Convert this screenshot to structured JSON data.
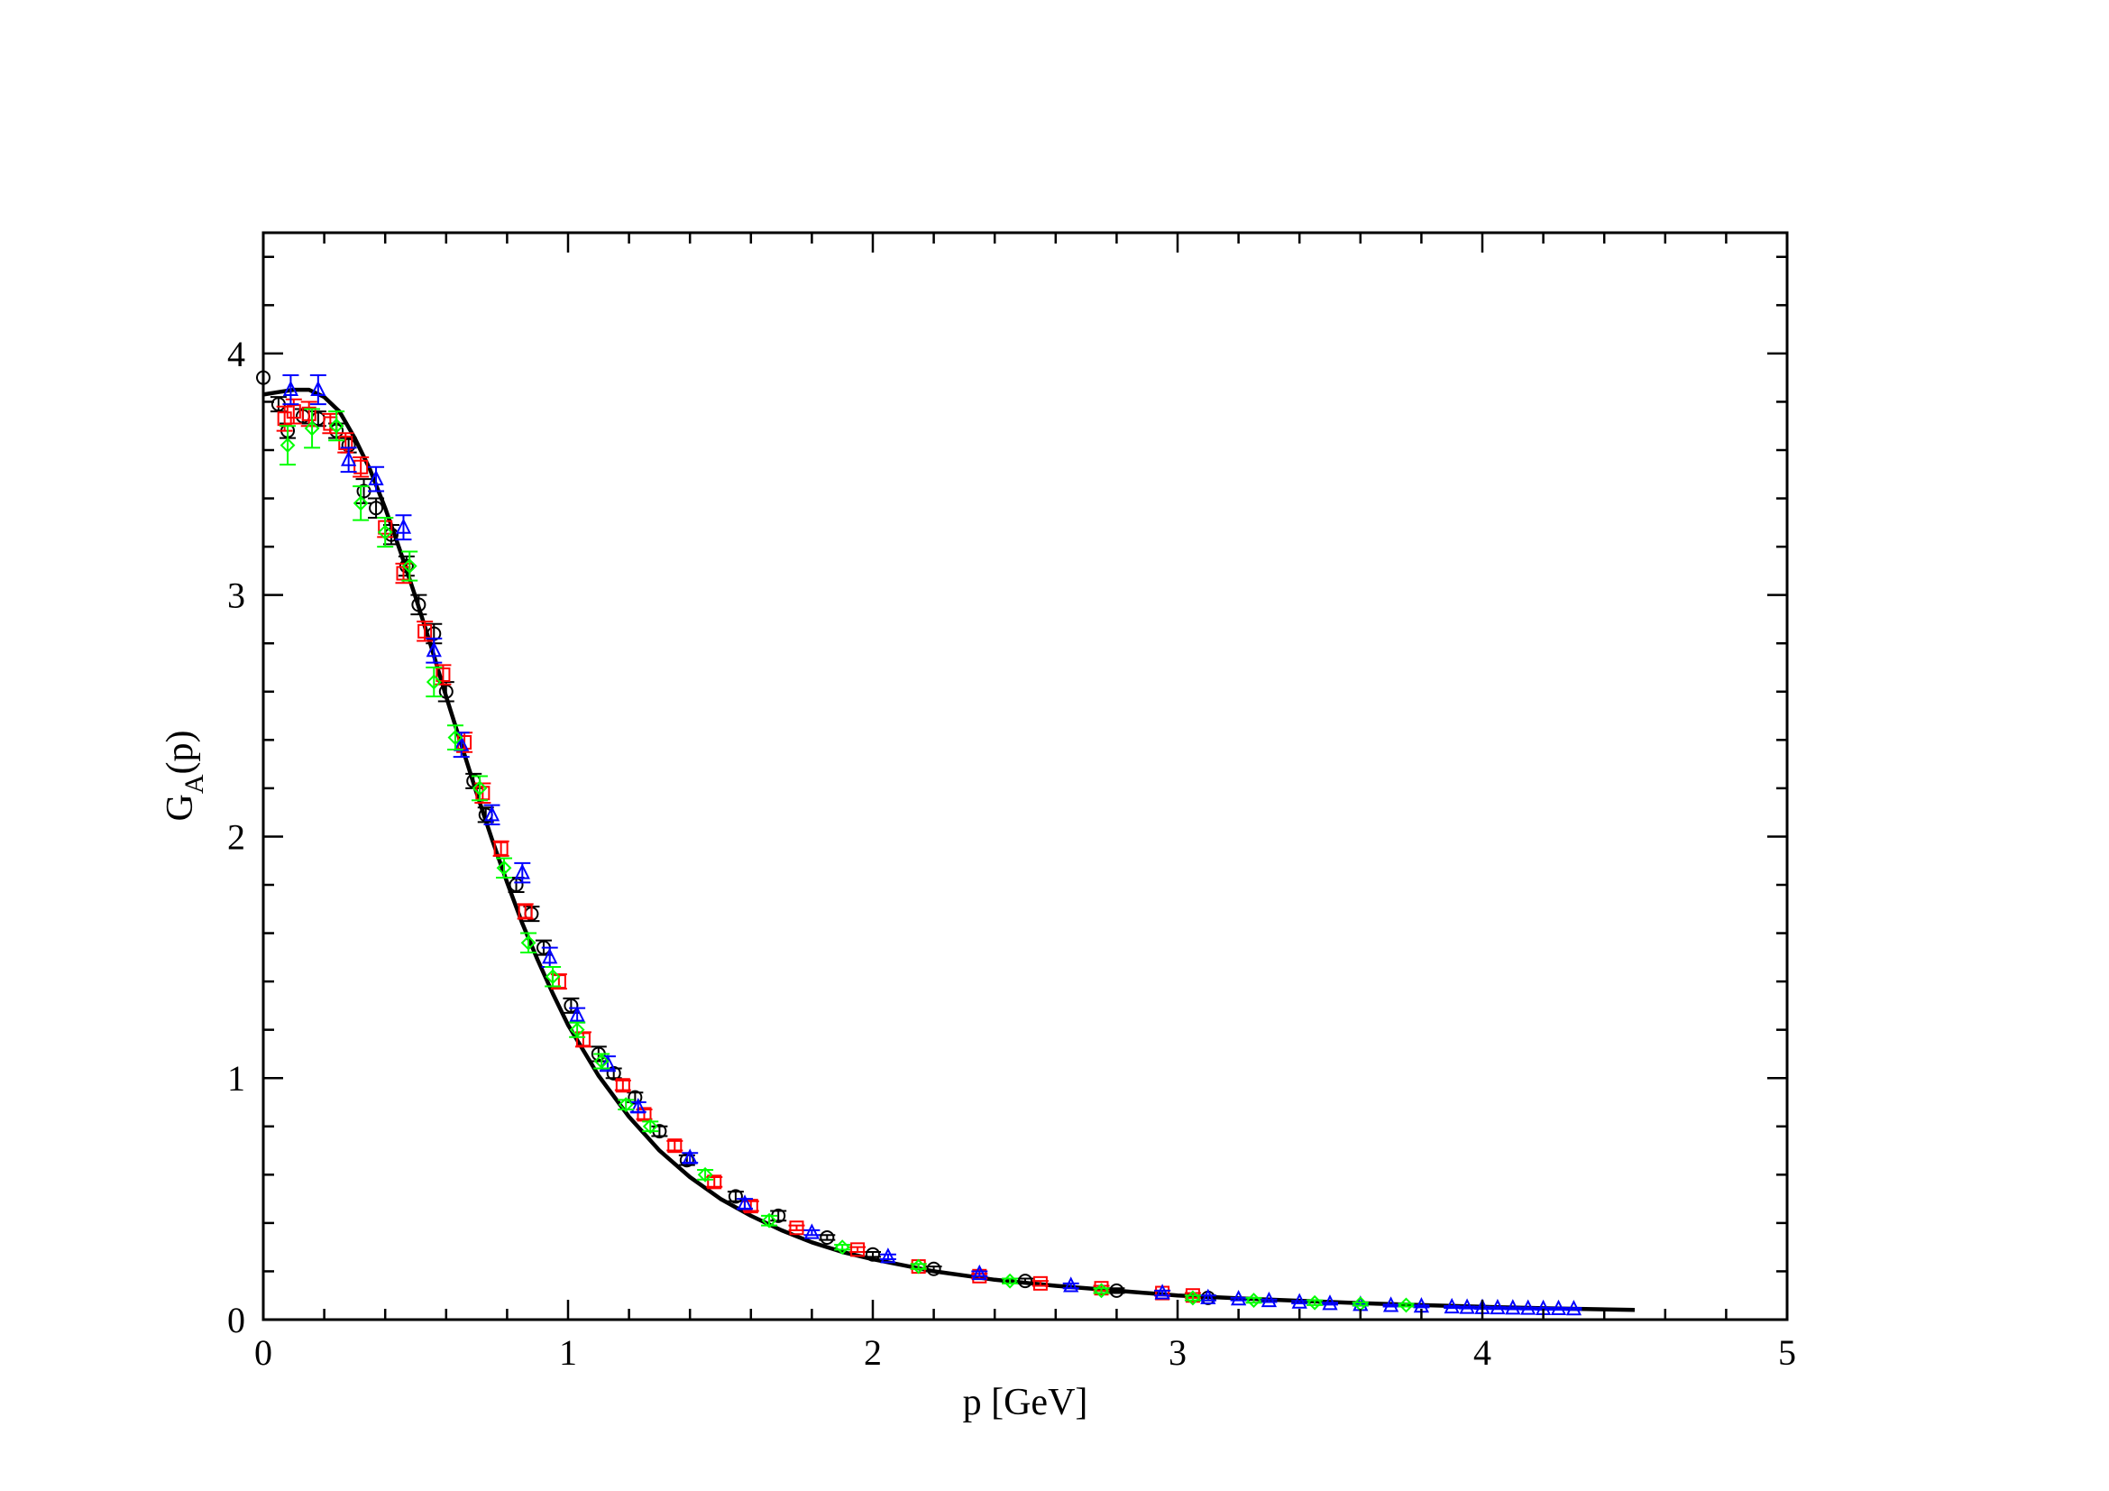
{
  "chart_data": {
    "type": "scatter",
    "title": "",
    "xlabel": "p [GeV]",
    "ylabel_main": "G",
    "ylabel_sub": "A",
    "ylabel_tail": "(p)",
    "xlim": [
      0,
      5
    ],
    "ylim": [
      0,
      4.5
    ],
    "xticks": [
      "0",
      "1",
      "2",
      "3",
      "4",
      "5"
    ],
    "yticks": [
      "0",
      "1",
      "2",
      "3",
      "4"
    ],
    "grid": false,
    "legend": "none",
    "fit_curve": {
      "color": "#000000",
      "x": [
        0,
        0.05,
        0.1,
        0.15,
        0.2,
        0.25,
        0.3,
        0.35,
        0.4,
        0.45,
        0.5,
        0.55,
        0.6,
        0.65,
        0.7,
        0.75,
        0.8,
        0.85,
        0.9,
        0.95,
        1.0,
        1.1,
        1.2,
        1.3,
        1.4,
        1.5,
        1.6,
        1.7,
        1.8,
        1.9,
        2.0,
        2.2,
        2.4,
        2.6,
        2.8,
        3.0,
        3.2,
        3.4,
        3.6,
        3.8,
        4.0,
        4.2,
        4.5
      ],
      "y": [
        3.83,
        3.84,
        3.85,
        3.85,
        3.82,
        3.76,
        3.65,
        3.52,
        3.36,
        3.18,
        2.99,
        2.79,
        2.58,
        2.38,
        2.18,
        1.99,
        1.81,
        1.64,
        1.49,
        1.35,
        1.22,
        1.01,
        0.84,
        0.7,
        0.59,
        0.5,
        0.43,
        0.37,
        0.32,
        0.28,
        0.25,
        0.2,
        0.165,
        0.14,
        0.12,
        0.1,
        0.088,
        0.078,
        0.068,
        0.06,
        0.053,
        0.047,
        0.04
      ]
    },
    "series": [
      {
        "color": "#000000",
        "marker": "circle",
        "points": [
          [
            0.0,
            3.9,
            0
          ],
          [
            0.05,
            3.79,
            0.03
          ],
          [
            0.08,
            3.68,
            0.03
          ],
          [
            0.13,
            3.74,
            0.03
          ],
          [
            0.18,
            3.73,
            0.03
          ],
          [
            0.24,
            3.68,
            0.03
          ],
          [
            0.28,
            3.62,
            0.03
          ],
          [
            0.33,
            3.43,
            0.05
          ],
          [
            0.37,
            3.36,
            0.04
          ],
          [
            0.42,
            3.25,
            0.04
          ],
          [
            0.47,
            3.12,
            0.04
          ],
          [
            0.51,
            2.96,
            0.04
          ],
          [
            0.56,
            2.84,
            0.04
          ],
          [
            0.6,
            2.6,
            0.04
          ],
          [
            0.69,
            2.23,
            0.03
          ],
          [
            0.73,
            2.09,
            0.03
          ],
          [
            0.83,
            1.8,
            0.03
          ],
          [
            0.88,
            1.68,
            0.03
          ],
          [
            0.92,
            1.54,
            0.03
          ],
          [
            1.01,
            1.3,
            0.03
          ],
          [
            1.1,
            1.1,
            0.03
          ],
          [
            1.15,
            1.02,
            0.02
          ],
          [
            1.22,
            0.92,
            0.02
          ],
          [
            1.3,
            0.78,
            0.02
          ],
          [
            1.39,
            0.66,
            0.02
          ],
          [
            1.55,
            0.51,
            0.02
          ],
          [
            1.69,
            0.43,
            0.02
          ],
          [
            1.85,
            0.34,
            0.01
          ],
          [
            2.0,
            0.27,
            0.01
          ],
          [
            2.2,
            0.21,
            0.01
          ],
          [
            2.5,
            0.16,
            0.01
          ],
          [
            2.8,
            0.12,
            0.01
          ],
          [
            3.1,
            0.09,
            0.01
          ]
        ]
      },
      {
        "color": "#ff0000",
        "marker": "square",
        "points": [
          [
            0.07,
            3.73,
            0.05
          ],
          [
            0.1,
            3.76,
            0.05
          ],
          [
            0.15,
            3.75,
            0.05
          ],
          [
            0.22,
            3.71,
            0.04
          ],
          [
            0.27,
            3.63,
            0.04
          ],
          [
            0.32,
            3.53,
            0.04
          ],
          [
            0.4,
            3.28,
            0.04
          ],
          [
            0.46,
            3.09,
            0.04
          ],
          [
            0.53,
            2.85,
            0.04
          ],
          [
            0.59,
            2.67,
            0.04
          ],
          [
            0.66,
            2.39,
            0.04
          ],
          [
            0.72,
            2.18,
            0.04
          ],
          [
            0.78,
            1.95,
            0.03
          ],
          [
            0.86,
            1.69,
            0.03
          ],
          [
            0.97,
            1.4,
            0.03
          ],
          [
            1.05,
            1.16,
            0.03
          ],
          [
            1.18,
            0.97,
            0.02
          ],
          [
            1.25,
            0.85,
            0.02
          ],
          [
            1.35,
            0.72,
            0.02
          ],
          [
            1.48,
            0.57,
            0.02
          ],
          [
            1.6,
            0.47,
            0.02
          ],
          [
            1.75,
            0.38,
            0.01
          ],
          [
            1.95,
            0.29,
            0.01
          ],
          [
            2.15,
            0.22,
            0.01
          ],
          [
            2.35,
            0.18,
            0.01
          ],
          [
            2.55,
            0.15,
            0.01
          ],
          [
            2.75,
            0.13,
            0.01
          ],
          [
            2.95,
            0.11,
            0.01
          ],
          [
            3.05,
            0.1,
            0.01
          ]
        ]
      },
      {
        "color": "#0000ff",
        "marker": "triangle",
        "points": [
          [
            0.09,
            3.85,
            0.06
          ],
          [
            0.18,
            3.85,
            0.06
          ],
          [
            0.28,
            3.56,
            0.05
          ],
          [
            0.37,
            3.48,
            0.05
          ],
          [
            0.46,
            3.28,
            0.05
          ],
          [
            0.56,
            2.77,
            0.05
          ],
          [
            0.65,
            2.38,
            0.05
          ],
          [
            0.75,
            2.09,
            0.04
          ],
          [
            0.85,
            1.85,
            0.04
          ],
          [
            0.94,
            1.5,
            0.04
          ],
          [
            1.03,
            1.26,
            0.03
          ],
          [
            1.13,
            1.06,
            0.03
          ],
          [
            1.23,
            0.88,
            0.02
          ],
          [
            1.4,
            0.67,
            0.02
          ],
          [
            1.58,
            0.48,
            0.02
          ],
          [
            1.8,
            0.36,
            0.01
          ],
          [
            2.05,
            0.26,
            0.01
          ],
          [
            2.35,
            0.19,
            0.01
          ],
          [
            2.65,
            0.14,
            0.01
          ],
          [
            2.95,
            0.11,
            0.01
          ],
          [
            3.1,
            0.09,
            0.01
          ],
          [
            3.2,
            0.085,
            0.005
          ],
          [
            3.3,
            0.078,
            0.005
          ],
          [
            3.4,
            0.072,
            0.005
          ],
          [
            3.5,
            0.066,
            0.004
          ],
          [
            3.6,
            0.062,
            0.004
          ],
          [
            3.7,
            0.058,
            0.004
          ],
          [
            3.8,
            0.055,
            0.004
          ],
          [
            3.9,
            0.052,
            0.004
          ],
          [
            3.95,
            0.05,
            0.004
          ],
          [
            4.0,
            0.049,
            0.004
          ],
          [
            4.05,
            0.048,
            0.004
          ],
          [
            4.1,
            0.047,
            0.004
          ],
          [
            4.15,
            0.046,
            0.004
          ],
          [
            4.2,
            0.045,
            0.004
          ],
          [
            4.25,
            0.045,
            0.004
          ],
          [
            4.3,
            0.044,
            0.004
          ]
        ]
      },
      {
        "color": "#00ff00",
        "marker": "diamond",
        "points": [
          [
            0.08,
            3.62,
            0.08
          ],
          [
            0.16,
            3.69,
            0.08
          ],
          [
            0.24,
            3.7,
            0.06
          ],
          [
            0.32,
            3.38,
            0.07
          ],
          [
            0.4,
            3.26,
            0.06
          ],
          [
            0.48,
            3.12,
            0.06
          ],
          [
            0.56,
            2.64,
            0.06
          ],
          [
            0.63,
            2.41,
            0.05
          ],
          [
            0.71,
            2.2,
            0.05
          ],
          [
            0.79,
            1.87,
            0.04
          ],
          [
            0.87,
            1.56,
            0.04
          ],
          [
            0.95,
            1.42,
            0.04
          ],
          [
            1.03,
            1.2,
            0.03
          ],
          [
            1.11,
            1.07,
            0.03
          ],
          [
            1.19,
            0.89,
            0.02
          ],
          [
            1.27,
            0.8,
            0.02
          ],
          [
            1.45,
            0.6,
            0.02
          ],
          [
            1.66,
            0.41,
            0.02
          ],
          [
            1.9,
            0.3,
            0.01
          ],
          [
            2.15,
            0.22,
            0.01
          ],
          [
            2.45,
            0.16,
            0.01
          ],
          [
            2.75,
            0.12,
            0.01
          ],
          [
            3.05,
            0.09,
            0.01
          ],
          [
            3.25,
            0.08,
            0.01
          ],
          [
            3.45,
            0.07,
            0.01
          ],
          [
            3.6,
            0.065,
            0.006
          ],
          [
            3.75,
            0.06,
            0.006
          ]
        ]
      }
    ]
  }
}
